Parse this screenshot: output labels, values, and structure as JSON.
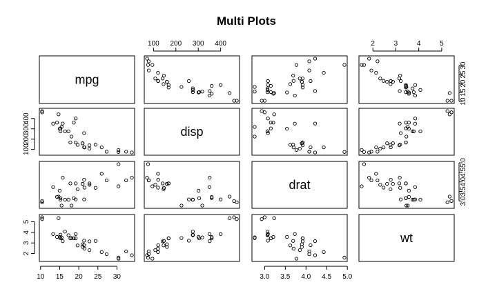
{
  "chart_data": {
    "type": "scatter",
    "title": "Multi Plots",
    "matrix_type": "scatterplot-matrix",
    "variables": [
      "mpg",
      "disp",
      "drat",
      "wt"
    ],
    "grid": false,
    "legend": "none",
    "axes": {
      "mpg": {
        "range": [
          10.4,
          33.9
        ],
        "ticks": [
          10,
          15,
          20,
          25,
          30
        ],
        "tick_labels": [
          "10",
          "15",
          "20",
          "25",
          "30"
        ]
      },
      "disp": {
        "range": [
          71.1,
          472
        ],
        "ticks": [
          100,
          200,
          300,
          400
        ],
        "tick_labels": [
          "100",
          "200",
          "300",
          "400"
        ]
      },
      "drat": {
        "range": [
          2.76,
          4.93
        ],
        "ticks": [
          3.0,
          3.5,
          4.0,
          4.5,
          5.0
        ],
        "tick_labels": [
          "3.0",
          "3.5",
          "4.0",
          "4.5",
          "5.0"
        ]
      },
      "wt": {
        "range": [
          1.513,
          5.424
        ],
        "ticks": [
          2,
          3,
          4,
          5
        ],
        "tick_labels": [
          "2",
          "3",
          "4",
          "5"
        ]
      }
    },
    "observations": [
      {
        "mpg": 21.0,
        "disp": 160,
        "drat": 3.9,
        "wt": 2.62
      },
      {
        "mpg": 21.0,
        "disp": 160,
        "drat": 3.9,
        "wt": 2.875
      },
      {
        "mpg": 22.8,
        "disp": 108,
        "drat": 3.85,
        "wt": 2.32
      },
      {
        "mpg": 21.4,
        "disp": 258,
        "drat": 3.08,
        "wt": 3.215
      },
      {
        "mpg": 18.7,
        "disp": 360,
        "drat": 3.15,
        "wt": 3.44
      },
      {
        "mpg": 18.1,
        "disp": 225,
        "drat": 2.76,
        "wt": 3.46
      },
      {
        "mpg": 14.3,
        "disp": 360,
        "drat": 3.21,
        "wt": 3.57
      },
      {
        "mpg": 24.4,
        "disp": 146.7,
        "drat": 3.69,
        "wt": 3.19
      },
      {
        "mpg": 22.8,
        "disp": 140.8,
        "drat": 3.92,
        "wt": 3.15
      },
      {
        "mpg": 19.2,
        "disp": 167.6,
        "drat": 3.92,
        "wt": 3.44
      },
      {
        "mpg": 17.8,
        "disp": 167.6,
        "drat": 3.92,
        "wt": 3.44
      },
      {
        "mpg": 16.4,
        "disp": 275.8,
        "drat": 3.07,
        "wt": 4.07
      },
      {
        "mpg": 17.3,
        "disp": 275.8,
        "drat": 3.07,
        "wt": 3.73
      },
      {
        "mpg": 15.2,
        "disp": 275.8,
        "drat": 3.07,
        "wt": 3.78
      },
      {
        "mpg": 10.4,
        "disp": 472,
        "drat": 2.93,
        "wt": 5.25
      },
      {
        "mpg": 10.4,
        "disp": 460,
        "drat": 3.0,
        "wt": 5.424
      },
      {
        "mpg": 14.7,
        "disp": 440,
        "drat": 3.23,
        "wt": 5.345
      },
      {
        "mpg": 32.4,
        "disp": 78.7,
        "drat": 4.08,
        "wt": 2.2
      },
      {
        "mpg": 30.4,
        "disp": 75.7,
        "drat": 4.93,
        "wt": 1.615
      },
      {
        "mpg": 33.9,
        "disp": 71.1,
        "drat": 4.22,
        "wt": 1.835
      },
      {
        "mpg": 21.5,
        "disp": 120.1,
        "drat": 3.7,
        "wt": 2.465
      },
      {
        "mpg": 15.5,
        "disp": 318,
        "drat": 2.76,
        "wt": 3.52
      },
      {
        "mpg": 15.2,
        "disp": 304,
        "drat": 3.15,
        "wt": 3.435
      },
      {
        "mpg": 13.3,
        "disp": 350,
        "drat": 3.73,
        "wt": 3.84
      },
      {
        "mpg": 19.2,
        "disp": 400,
        "drat": 3.08,
        "wt": 3.845
      },
      {
        "mpg": 27.3,
        "disp": 79,
        "drat": 4.08,
        "wt": 1.935
      },
      {
        "mpg": 26.0,
        "disp": 120.3,
        "drat": 4.43,
        "wt": 2.14
      },
      {
        "mpg": 30.4,
        "disp": 95.1,
        "drat": 3.77,
        "wt": 1.513
      },
      {
        "mpg": 15.8,
        "disp": 351,
        "drat": 4.22,
        "wt": 3.17
      },
      {
        "mpg": 19.7,
        "disp": 145,
        "drat": 3.62,
        "wt": 2.77
      },
      {
        "mpg": 15.0,
        "disp": 301,
        "drat": 3.54,
        "wt": 3.57
      },
      {
        "mpg": 21.4,
        "disp": 121,
        "drat": 4.11,
        "wt": 2.78
      }
    ]
  }
}
